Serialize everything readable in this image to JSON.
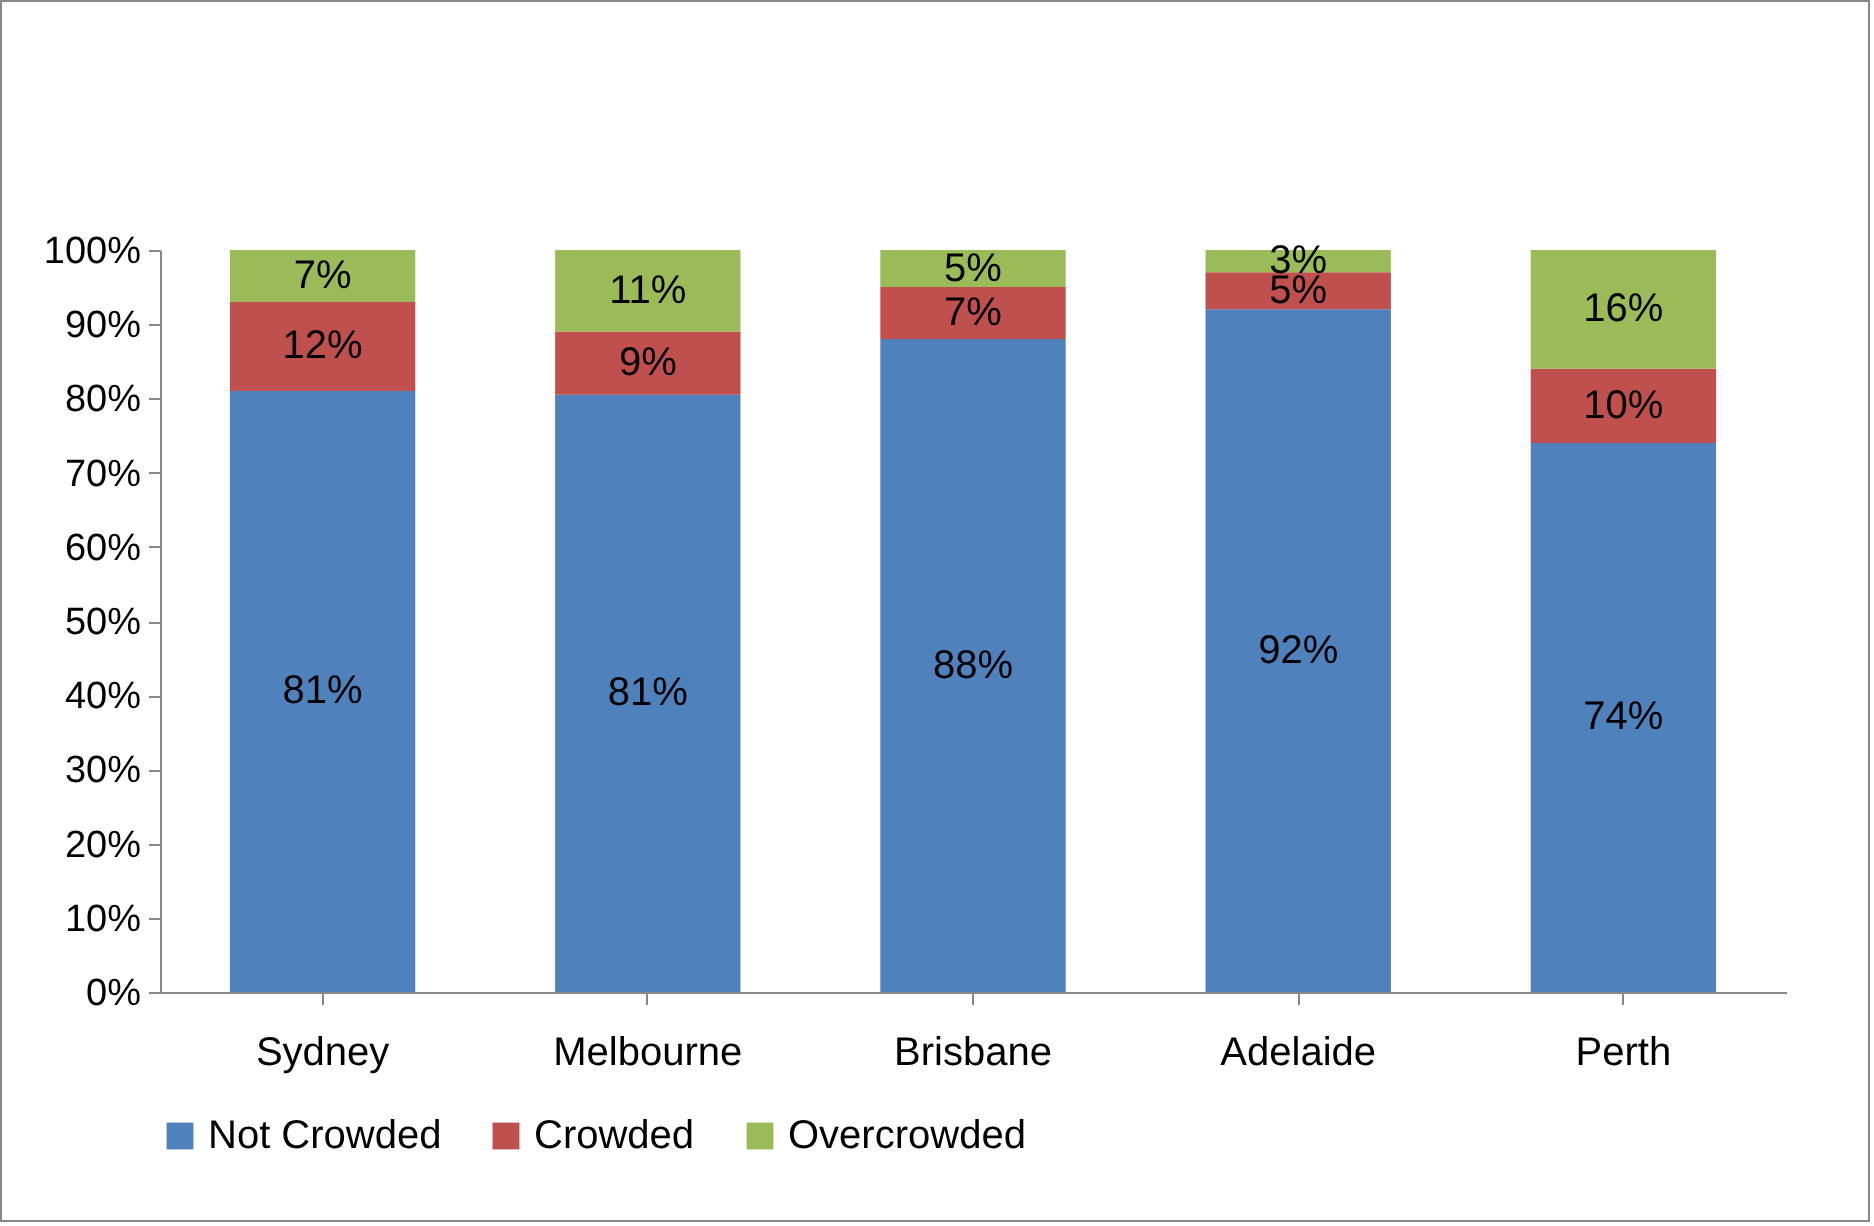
{
  "chart_data": {
    "type": "bar",
    "stacked": true,
    "categories": [
      "Sydney",
      "Melbourne",
      "Brisbane",
      "Adelaide",
      "Perth"
    ],
    "series": [
      {
        "name": "Not Crowded",
        "color": "#4f81bd",
        "values": [
          81,
          80.5,
          88,
          92,
          74
        ],
        "value_labels": [
          "81%",
          "81%",
          "88%",
          "92%",
          "74%"
        ]
      },
      {
        "name": "Crowded",
        "color": "#c0504d",
        "values": [
          12,
          8.5,
          7,
          5,
          10
        ],
        "value_labels": [
          "12%",
          "9%",
          "7%",
          "5%",
          "10%"
        ]
      },
      {
        "name": "Overcrowded",
        "color": "#9bbb59",
        "values": [
          7,
          11,
          5,
          3,
          16
        ],
        "value_labels": [
          "7%",
          "11%",
          "5%",
          "3%",
          "16%"
        ]
      }
    ],
    "ylim": [
      0,
      100
    ],
    "yticks": [
      {
        "value": 0,
        "label": "0%"
      },
      {
        "value": 10,
        "label": "10%"
      },
      {
        "value": 20,
        "label": "20%"
      },
      {
        "value": 30,
        "label": "30%"
      },
      {
        "value": 40,
        "label": "40%"
      },
      {
        "value": 50,
        "label": "50%"
      },
      {
        "value": 60,
        "label": "60%"
      },
      {
        "value": 70,
        "label": "70%"
      },
      {
        "value": 80,
        "label": "80%"
      },
      {
        "value": 90,
        "label": "90%"
      },
      {
        "value": 100,
        "label": "100%"
      }
    ],
    "legend": "bottom"
  }
}
